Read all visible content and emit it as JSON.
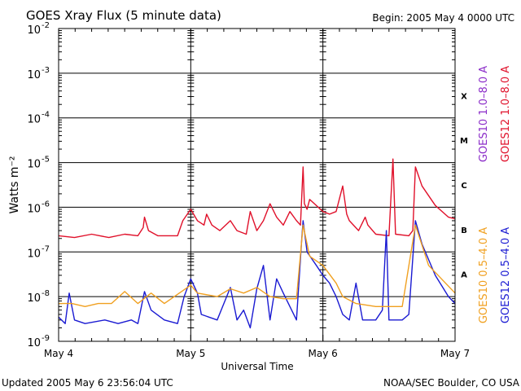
{
  "chart_data": {
    "type": "line",
    "title": "GOES Xray Flux (5 minute data)",
    "begin_label": "Begin:  2005 May 4 0000 UTC",
    "xlabel": "Universal Time",
    "ylabel": "Watts m⁻²",
    "yscale": "log",
    "ylim": [
      1e-09,
      0.01
    ],
    "y_ticks": [
      {
        "base": "10",
        "exp": "-2"
      },
      {
        "base": "10",
        "exp": "-3"
      },
      {
        "base": "10",
        "exp": "-4"
      },
      {
        "base": "10",
        "exp": "-5"
      },
      {
        "base": "10",
        "exp": "-6"
      },
      {
        "base": "10",
        "exp": "-7"
      },
      {
        "base": "10",
        "exp": "-8"
      },
      {
        "base": "10",
        "exp": "-9"
      }
    ],
    "x_unit": "day from 2005 May 4 0000 UTC",
    "xlim": [
      0,
      3
    ],
    "x_ticks": [
      "May 4",
      "May 5",
      "May 6",
      "May 7"
    ],
    "flare_classes": [
      "X",
      "M",
      "C",
      "B",
      "A"
    ],
    "grid": true,
    "series": [
      {
        "name": "GOES12 1.0–8.0 A",
        "color": "#e0102a",
        "points": [
          [
            0,
            2.3e-07
          ],
          [
            0.12,
            2.1e-07
          ],
          [
            0.25,
            2.5e-07
          ],
          [
            0.38,
            2.1e-07
          ],
          [
            0.5,
            2.5e-07
          ],
          [
            0.6,
            2.3e-07
          ],
          [
            0.64,
            3.5e-07
          ],
          [
            0.65,
            6e-07
          ],
          [
            0.68,
            3e-07
          ],
          [
            0.75,
            2.3e-07
          ],
          [
            0.9,
            2.3e-07
          ],
          [
            0.94,
            5e-07
          ],
          [
            1.0,
            9e-07
          ],
          [
            1.05,
            5e-07
          ],
          [
            1.1,
            4e-07
          ],
          [
            1.12,
            7e-07
          ],
          [
            1.16,
            4e-07
          ],
          [
            1.22,
            3e-07
          ],
          [
            1.3,
            5e-07
          ],
          [
            1.35,
            3e-07
          ],
          [
            1.42,
            2.5e-07
          ],
          [
            1.45,
            8e-07
          ],
          [
            1.5,
            3e-07
          ],
          [
            1.55,
            5e-07
          ],
          [
            1.6,
            1.2e-06
          ],
          [
            1.65,
            6e-07
          ],
          [
            1.7,
            4e-07
          ],
          [
            1.75,
            8e-07
          ],
          [
            1.8,
            5e-07
          ],
          [
            1.83,
            4e-07
          ],
          [
            1.85,
            8e-06
          ],
          [
            1.86,
            1.2e-06
          ],
          [
            1.88,
            9e-07
          ],
          [
            1.9,
            1.5e-06
          ],
          [
            2.0,
            8e-07
          ],
          [
            2.05,
            7e-07
          ],
          [
            2.1,
            8e-07
          ],
          [
            2.15,
            3e-06
          ],
          [
            2.18,
            7e-07
          ],
          [
            2.2,
            5e-07
          ],
          [
            2.27,
            3e-07
          ],
          [
            2.32,
            6e-07
          ],
          [
            2.34,
            4e-07
          ],
          [
            2.4,
            2.5e-07
          ],
          [
            2.5,
            2.3e-07
          ],
          [
            2.53,
            1.2e-05
          ],
          [
            2.55,
            2.5e-07
          ],
          [
            2.65,
            2.3e-07
          ],
          [
            2.68,
            3e-07
          ],
          [
            2.7,
            8e-06
          ],
          [
            2.75,
            3e-06
          ],
          [
            2.85,
            1.1e-06
          ],
          [
            2.95,
            6e-07
          ],
          [
            3.0,
            5.5e-07
          ]
        ]
      },
      {
        "name": "GOES12 0.5–4.0 A",
        "color": "#1a1ad2",
        "points": [
          [
            0,
            3.5e-09
          ],
          [
            0.05,
            2.5e-09
          ],
          [
            0.08,
            1.2e-08
          ],
          [
            0.12,
            3e-09
          ],
          [
            0.2,
            2.5e-09
          ],
          [
            0.35,
            3e-09
          ],
          [
            0.45,
            2.5e-09
          ],
          [
            0.55,
            3e-09
          ],
          [
            0.6,
            2.5e-09
          ],
          [
            0.65,
            1.3e-08
          ],
          [
            0.7,
            5e-09
          ],
          [
            0.8,
            3e-09
          ],
          [
            0.9,
            2.5e-09
          ],
          [
            0.95,
            1e-08
          ],
          [
            1.0,
            2.5e-08
          ],
          [
            1.05,
            1.2e-08
          ],
          [
            1.08,
            4e-09
          ],
          [
            1.2,
            3e-09
          ],
          [
            1.3,
            1.6e-08
          ],
          [
            1.35,
            3e-09
          ],
          [
            1.4,
            5e-09
          ],
          [
            1.45,
            2e-09
          ],
          [
            1.5,
            1.5e-08
          ],
          [
            1.55,
            5e-08
          ],
          [
            1.6,
            3e-09
          ],
          [
            1.65,
            2.5e-08
          ],
          [
            1.7,
            1.2e-08
          ],
          [
            1.8,
            3e-09
          ],
          [
            1.84,
            2e-07
          ],
          [
            1.85,
            5e-07
          ],
          [
            1.88,
            1e-07
          ],
          [
            1.95,
            5e-08
          ],
          [
            2.0,
            3e-08
          ],
          [
            2.05,
            2e-08
          ],
          [
            2.1,
            1e-08
          ],
          [
            2.15,
            4e-09
          ],
          [
            2.2,
            3e-09
          ],
          [
            2.25,
            2e-08
          ],
          [
            2.3,
            3e-09
          ],
          [
            2.4,
            3e-09
          ],
          [
            2.45,
            5e-09
          ],
          [
            2.48,
            3e-07
          ],
          [
            2.5,
            3e-09
          ],
          [
            2.6,
            3e-09
          ],
          [
            2.65,
            4e-09
          ],
          [
            2.7,
            5e-07
          ],
          [
            2.75,
            1.5e-07
          ],
          [
            2.85,
            3e-08
          ],
          [
            2.95,
            1e-08
          ],
          [
            3.0,
            7e-09
          ]
        ]
      },
      {
        "name": "GOES10 1.0–8.0 A",
        "color": "#8a2bc8",
        "points": []
      },
      {
        "name": "GOES10 0.5–4.0 A",
        "color": "#f0a020",
        "points": [
          [
            0,
            7e-09
          ],
          [
            0.1,
            7e-09
          ],
          [
            0.2,
            6e-09
          ],
          [
            0.3,
            7e-09
          ],
          [
            0.4,
            7e-09
          ],
          [
            0.5,
            1.3e-08
          ],
          [
            0.6,
            7e-09
          ],
          [
            0.7,
            1.2e-08
          ],
          [
            0.8,
            7e-09
          ],
          [
            1.0,
            1.8e-08
          ],
          [
            1.05,
            1.2e-08
          ],
          [
            1.2,
            1e-08
          ],
          [
            1.3,
            1.5e-08
          ],
          [
            1.4,
            1.2e-08
          ],
          [
            1.5,
            1.6e-08
          ],
          [
            1.6,
            1e-08
          ],
          [
            1.7,
            9e-09
          ],
          [
            1.8,
            9e-09
          ],
          [
            1.85,
            4e-07
          ],
          [
            1.9,
            8e-08
          ],
          [
            2.0,
            5e-08
          ],
          [
            2.1,
            2e-08
          ],
          [
            2.15,
            1e-08
          ],
          [
            2.25,
            7e-09
          ],
          [
            2.4,
            6e-09
          ],
          [
            2.5,
            6e-09
          ],
          [
            2.6,
            6e-09
          ],
          [
            2.7,
            4e-07
          ],
          [
            2.8,
            5e-08
          ],
          [
            3.0,
            1.2e-08
          ]
        ]
      }
    ]
  },
  "footer": {
    "updated": "Updated 2005 May  6 23:56:04 UTC",
    "credit": "NOAA/SEC Boulder, CO USA"
  }
}
